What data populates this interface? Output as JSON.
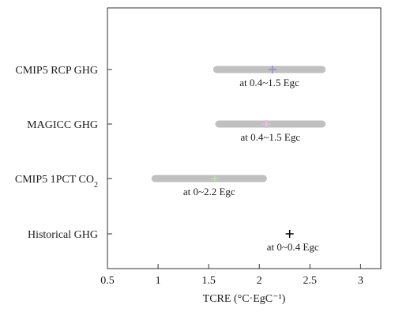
{
  "chart_data": {
    "type": "range-dot",
    "xlabel": "TCRE (°C·EgC⁻¹)",
    "xlim": [
      0.5,
      3.2
    ],
    "xticks": [
      "0.5",
      "1",
      "1.5",
      "2",
      "2.5",
      "3"
    ],
    "grid": false,
    "legend": "none",
    "rows": [
      {
        "label": "CMIP5 RCP GHG",
        "range": [
          1.58,
          2.62
        ],
        "center": 2.13,
        "marker": "plus",
        "marker_color": "#8f8fd0",
        "annotation": "at 0.4~1.5 Egc"
      },
      {
        "label": "MAGICC GHG",
        "range": [
          1.6,
          2.62
        ],
        "center": 2.07,
        "marker": "plus",
        "marker_color": "#f3b8e6",
        "annotation": "at 0.4~1.5 Egc"
      },
      {
        "label": "CMIP5 1PCT CO",
        "label_sub": "2",
        "range": [
          0.97,
          2.04
        ],
        "center": 1.56,
        "marker": "plus",
        "marker_color": "#b8e6a6",
        "annotation": "at 0~2.2 Egc"
      },
      {
        "label": "Historical GHG",
        "range": null,
        "center": 2.3,
        "marker": "plus",
        "marker_color": "#000000",
        "annotation": "at 0~0.4 Egc"
      }
    ],
    "colors": {
      "range_bar": "#c0c0c0",
      "axis": "#333333"
    }
  }
}
